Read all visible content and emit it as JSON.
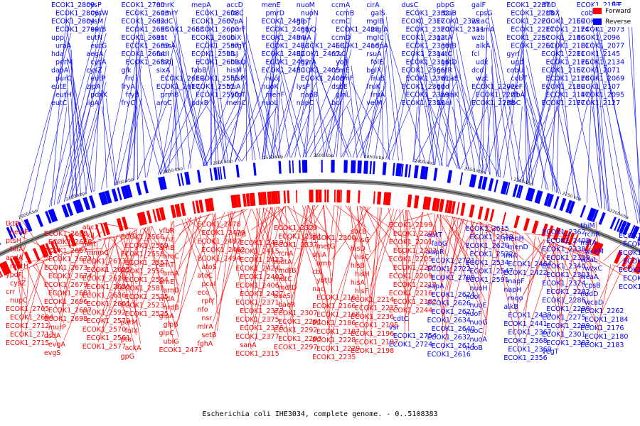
{
  "legend": {
    "forward_label": "Forward",
    "reverse_label": "Reverse",
    "forward_color": "#ff0000",
    "reverse_color": "#0000ff"
  },
  "caption": "Escherichia coli IHE3034, complete genome. - 0..5108383",
  "scale_labels": [
    "2850 kbp",
    "2800 kbp",
    "2750 kbp",
    "2700 kbp",
    "2650 kbp",
    "2600 kbp",
    "2550 kbp",
    "2500 kbp",
    "2450 kbp",
    "2400 kbp",
    "2350 kbp",
    "2300 kbp",
    "2250 kbp",
    "2200 kbp",
    "2150 kbp"
  ],
  "reverse_labels": [
    "ECOK1_2809",
    "ECOK1_2806",
    "ECOK1_2804",
    "ECOK1_2799",
    "upp",
    "uraA",
    "hda",
    "perM",
    "dapA",
    "purC",
    "eutE",
    "eutH",
    "eutC",
    "cysP",
    "cysW",
    "cysM",
    "eutB",
    "eutN",
    "eutG",
    "aegA",
    "cysA",
    "cysZ",
    "eutP",
    "zipA",
    "pdxK",
    "ligA",
    "ECOK1_2700",
    "ECOK1_2693",
    "ECOK1_2692",
    "ECOK1_2695",
    "ECOK1_2691",
    "ECOK1_2689",
    "ECOK1_2664",
    "ECOK1_2687",
    "glk",
    "frc",
    "fryA",
    "fryB",
    "fryC",
    "emrK",
    "emrY",
    "dsdC",
    "ECOK1_2663",
    "ant",
    "rusA",
    "fadI",
    "fadJ",
    "sixA",
    "ECOK1_2619",
    "ECOK1_2617",
    "prmB",
    "aroC",
    "mepA",
    "ECOK1_2608",
    "ECOK1_2607",
    "ECOK1_2603",
    "ECOK1_2600",
    "ECOK1_2597",
    "ECOK1_2595",
    "ECOK1_2609",
    "fabB",
    "ECOK1_2555",
    "ECOK1_2552",
    "ECOK1_2550",
    "pdxB",
    "accD",
    "folC",
    "cvpA",
    "purF",
    "ubiX",
    "argT",
    "hisJ",
    "hisQ",
    "hisM",
    "hisP",
    "truA",
    "yfbT",
    "menC",
    "menE",
    "pmrD",
    "ECOK1_2488",
    "ECOK1_2486",
    "ECOK1_2484",
    "ECOK1_2483",
    "ECOK1_2485",
    "ECOK1_2482",
    "ECOK1_2480",
    "nuoJ",
    "nuoK",
    "menF",
    "nuoL",
    "nuoM",
    "nuoN",
    "glpT",
    "glpQ",
    "inaA",
    "ECOK1_2468",
    "ECOK1_2467",
    "gyrA",
    "ECOK1_2405",
    "ECOK1_2403",
    "lysP",
    "napB",
    "napC",
    "ccmA",
    "ccmB",
    "ccmC",
    "ECOK1_2428",
    "ccmD",
    "ECOK1_2416",
    "rcsC",
    "yojJ",
    "ccmE",
    "ccmF",
    "dsbE",
    "glnL",
    "bcr",
    "cirA",
    "galS",
    "mglB",
    "mglA",
    "mglC",
    "ndpA",
    "rsuA",
    "folE",
    "bglX",
    "fruB",
    "fruK",
    "fruA",
    "veiM",
    "dusC",
    "ECOK1_2332",
    "ECOK1_2317",
    "ECOK1_2320",
    "ECOK1_2312",
    "ECOK1_2330",
    "ECOK1_2314",
    "ECOK1_2316",
    "ECOK1_2366",
    "ECOK1_2361",
    "ECOK1_2360",
    "ECOK1_2359",
    "ECOK1_2355",
    "pbpG",
    "rbaB",
    "ECOK1_2325",
    "ECOK1_2311",
    "gatA",
    "gatB",
    "gatC",
    "gatD",
    "gatR",
    "wcaE",
    "gnd",
    "wcaK",
    "wcaI",
    "galF",
    "cpsG",
    "wcaC",
    "asmA",
    "wzb",
    "alkA",
    "fcl",
    "udk",
    "dcd",
    "wzc",
    "ECOK1_2202",
    "ECOK1_2221",
    "ECOK1_2238",
    "ECOK1_2237",
    "ECOK1_2218",
    "ECOK1_2220",
    "ECOK1_2217",
    "ECOK1_2257",
    "ECOK1_2261",
    "gyrI",
    "ugd",
    "cobU",
    "cobT",
    "yeeF",
    "rfbA",
    "rfbC",
    "rfbD",
    "rfbX",
    "ECOK1_2169",
    "ECOK1_2174",
    "ECOK1_2146",
    "ECOK1_2181",
    "ECOK1_2211",
    "ECOK1_2175",
    "ECOK1_2157",
    "ECOK1_2178",
    "ECOK1_2189",
    "ECOK1_2147",
    "ECOK1_2177",
    "ECOK1_2193",
    "cobS",
    "ECOK1_2222",
    "ECOK1_2073",
    "ECOK1_2096",
    "ECOK1_2077",
    "ECOK1_2145",
    "ECOK1_2134",
    "ECOK1_2071",
    "ECOK1_2069",
    "ECOK1_2107",
    "ECOK1_2095",
    "ECOK1_2127",
    "fliE",
    "emrE",
    "cdtC",
    "vsr",
    "ECOK1_2754",
    "ECOK1_2724",
    "eutT",
    "fabG",
    "xapR",
    "ECOK1_2721",
    "ECOK1_2722",
    "ECOK1_2709",
    "xapA",
    "ECOK1_2624",
    "ECOK1_2626",
    "ECOK1_2627",
    "ECOK1_2634",
    "ECOK1_2640",
    "ECOK1_2632",
    "ECOK1_2614",
    "ECOK1_2616",
    "ECOK1_2615",
    "ECOK1_2618",
    "ECOK1_2620",
    "ECOK1_2532",
    "ECOK1_2534",
    "ECOK1_2547",
    "ECOK1_2591",
    "nuoH",
    "nuoI",
    "nuoE",
    "nuoF",
    "nuoG",
    "nuoC",
    "nuoA",
    "nuoB",
    "menH",
    "menD",
    "lrhA",
    "ECOK1_2464",
    "ECOK1_2422",
    "napF",
    "napH",
    "mqo",
    "alkB",
    "ECOK1_2439",
    "ECOK1_2441",
    "ECOK1_2367",
    "ECOK1_2368",
    "ECOK1_2369",
    "ECOK1_2356",
    "ECOK1_2362",
    "ECOK1_2408",
    "ECOK1_2338",
    "ECOK1_2339",
    "ECOK1_2340",
    "ECOK1_2303",
    "ECOK1_2324",
    "ECOK1_2282",
    "ECOK1_2286",
    "ECOK1_2290",
    "ECOK1_2275",
    "ECOK1_2299",
    "ECOK1_2301",
    "ECOK1_2302",
    "vegT",
    "thiM",
    "rcnR",
    "mtfA",
    "wcaM",
    "wcaL",
    "wzxC",
    "wcaA",
    "cpsB",
    "nudD",
    "wcaD",
    "ECOK1_2262",
    "ECOK1_2184",
    "ECOK1_2176",
    "ECOK1_2180",
    "ECOK1_2183",
    "ECOK1_2212",
    "ECOK1_2223",
    "ECOK1_2245",
    "ECOK1_2243",
    "ECOK1_2247",
    "ECOK1_2171",
    "ECOK1_2194"
  ],
  "forward_labels": [
    "tktB",
    "hemF",
    "ptsH",
    "talA",
    "amiA",
    "mntH",
    "ypdF",
    "cysZ",
    "crr",
    "nupC",
    "ECOK1_2705",
    "ECOK1_2694",
    "ECOK1_2712",
    "ECOK1_2713",
    "ECOK1_2715",
    "ECOK1_2668",
    "ECOK1_2666",
    "ECOK1_2667",
    "ECOK1_2672",
    "ECOK1_2673",
    "ECOK1_2674",
    "ECOK1_2679",
    "ECOK1_2681",
    "ECOK1_2696",
    "ECOK1_2697",
    "ECOK1_2698",
    "murP",
    "dsdA",
    "evgA",
    "evgS",
    "abc2",
    "kil",
    "mnt",
    "mnmC",
    "ECOK1_2613",
    "ECOK1_2625",
    "ECOK1_2628",
    "ECOK1_2630",
    "ECOK1_2636",
    "ECOK1_2601",
    "ECOK1_2592",
    "ECOK1_2579",
    "ECOK1_2570",
    "ECOK1_2561",
    "ECOK1_2577",
    "ECOK1_2566",
    "ECOK1_2559",
    "ECOK1_2558",
    "ECOK1_2557",
    "ECOK1_2556",
    "ECOK1_2554",
    "ECOK1_2581",
    "ECOK1_2535",
    "ECOK1_2523",
    "ECOK1_2525",
    "parM",
    "folX",
    "pta",
    "ackA",
    "gpG",
    "yfbR",
    "rnz",
    "arnB",
    "arnC",
    "arnT",
    "arnA",
    "arnE",
    "arnD",
    "nrdA",
    "nrdB",
    "glpA",
    "glpB",
    "glpC",
    "ubiG",
    "ECOK1_2471",
    "ECOK1_2478",
    "ECOK1_2479",
    "ECOK1_2487",
    "ECOK1_2492",
    "ECOK1_2494",
    "atoS",
    "atoC",
    "pcaI",
    "eco",
    "rplY",
    "nfo",
    "nsr",
    "mlrA",
    "setB",
    "fghA",
    "dld",
    "ECOK1_2419",
    "ECOK1_2415",
    "ECOK1_2423",
    "ECOK1_2424",
    "ECOK1_2402",
    "ECOK1_2406",
    "ECOK1_2427",
    "ECOK1_2371",
    "ECOK1_2372",
    "ECOK1_2375",
    "ECOK1_2376",
    "ECOK1_2377",
    "sanA",
    "ECOK1_2315",
    "ECOK1_2329",
    "ECOK1_2331",
    "ECOK1_2337",
    "rcnA",
    "mdtA",
    "mdtB",
    "mdtC",
    "mdtD",
    "baeS",
    "baeR",
    "ECOK1_2307",
    "ECOK1_2291",
    "ECOK1_2292",
    "ECOK1_2293",
    "ECOK1_2297",
    "ECOK1_2300",
    "metG",
    "shiA",
    "amn",
    "cbl",
    "ybtU",
    "nac",
    "ECOK1_2161",
    "ECOK1_2166",
    "ECOK1_2168",
    "ECOK1_2186",
    "ECOK1_2187",
    "ECOK1_2228",
    "ECOK1_2229",
    "ECOK1_2235",
    "sbcB",
    "hisG",
    "hisD",
    "hisC",
    "hisB",
    "hisH",
    "hisA",
    "hisF",
    "ECOK1_2214",
    "ECOK1_2215",
    "ECOK1_2236",
    "ECOK1_2195",
    "ECOK1_2196",
    "ECOK1_2197",
    "ECOK1_2198",
    "ECOK1_2199",
    "ECOK1_2200",
    "ECOK1_2201",
    "ECOK1_2203",
    "ECOK1_2205",
    "ECOK1_2207",
    "ECOK1_2209",
    "ECOK1_2213",
    "ECOK1_2216",
    "ECOK1_2182",
    "ECOK1_2244"
  ]
}
